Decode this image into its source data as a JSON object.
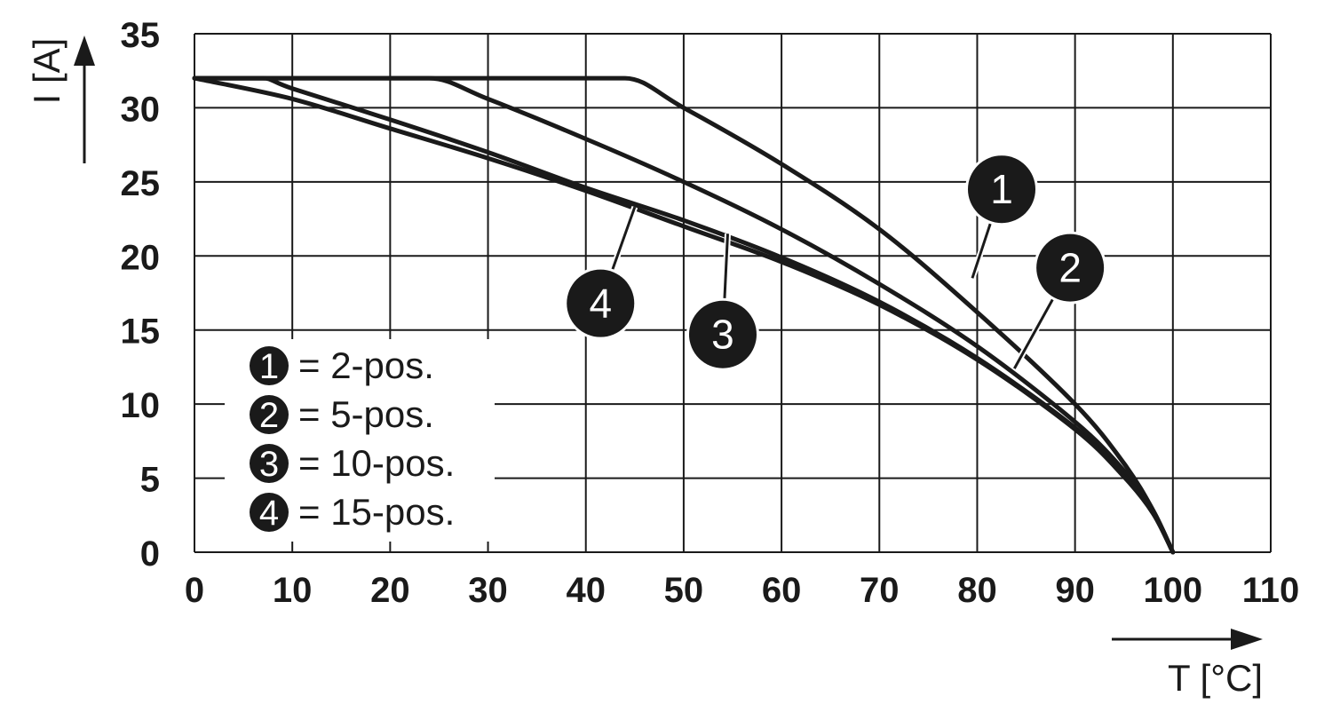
{
  "chart_data": {
    "type": "line",
    "xlabel": "T [°C]",
    "ylabel": "I [A]",
    "xlim": [
      0,
      110
    ],
    "ylim": [
      0,
      35
    ],
    "x_ticks": [
      "0",
      "10",
      "20",
      "30",
      "40",
      "50",
      "60",
      "70",
      "80",
      "90",
      "100",
      "110"
    ],
    "y_ticks": [
      "0",
      "5",
      "10",
      "15",
      "20",
      "25",
      "30",
      "35"
    ],
    "grid": true,
    "legend_placement": "bottom-left",
    "series": [
      {
        "marker": "1",
        "name": "= 2-pos.",
        "points": [
          [
            0,
            32
          ],
          [
            44,
            32
          ],
          [
            50,
            30
          ],
          [
            60,
            26.2
          ],
          [
            70,
            21.8
          ],
          [
            80,
            16.2
          ],
          [
            90,
            10
          ],
          [
            95,
            6
          ],
          [
            98,
            2.8
          ],
          [
            100,
            0
          ]
        ]
      },
      {
        "marker": "2",
        "name": "= 5-pos.",
        "points": [
          [
            0,
            32
          ],
          [
            24,
            32
          ],
          [
            30,
            30.6
          ],
          [
            40,
            27.9
          ],
          [
            50,
            25
          ],
          [
            60,
            21.8
          ],
          [
            70,
            18.1
          ],
          [
            80,
            13.9
          ],
          [
            90,
            8.8
          ],
          [
            95,
            5.5
          ],
          [
            98,
            2.7
          ],
          [
            100,
            0
          ]
        ]
      },
      {
        "marker": "3",
        "name": "= 10-pos.",
        "points": [
          [
            0,
            32
          ],
          [
            7,
            32
          ],
          [
            10,
            31.3
          ],
          [
            20,
            29.2
          ],
          [
            30,
            27
          ],
          [
            40,
            24.6
          ],
          [
            50,
            22.4
          ],
          [
            60,
            19.9
          ],
          [
            70,
            16.9
          ],
          [
            80,
            13.1
          ],
          [
            90,
            8.4
          ],
          [
            95,
            5.2
          ],
          [
            98,
            2.6
          ],
          [
            100,
            0
          ]
        ]
      },
      {
        "marker": "4",
        "name": "= 15-pos.",
        "points": [
          [
            0,
            32
          ],
          [
            10,
            30.6
          ],
          [
            20,
            28.6
          ],
          [
            30,
            26.6
          ],
          [
            40,
            24.4
          ],
          [
            50,
            22
          ],
          [
            60,
            19.6
          ],
          [
            70,
            16.7
          ],
          [
            80,
            13
          ],
          [
            90,
            8.3
          ],
          [
            95,
            5.1
          ],
          [
            98,
            2.6
          ],
          [
            100,
            0
          ]
        ]
      }
    ],
    "callouts": [
      {
        "marker": "1",
        "label_at": [
          82.5,
          24.5
        ],
        "leader_to": [
          79.5,
          18.5
        ]
      },
      {
        "marker": "2",
        "label_at": [
          89.5,
          19.2
        ],
        "leader_to": [
          83.8,
          12.4
        ]
      },
      {
        "marker": "3",
        "label_at": [
          54,
          14.7
        ],
        "leader_to": [
          54.5,
          21.5
        ]
      },
      {
        "marker": "4",
        "label_at": [
          41.5,
          16.8
        ],
        "leader_to": [
          45,
          23.3
        ]
      }
    ]
  }
}
